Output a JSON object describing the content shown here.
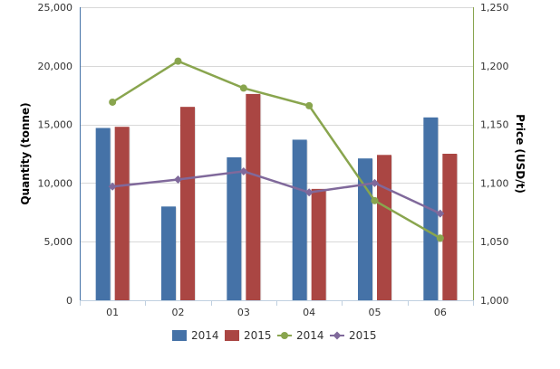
{
  "chart_data": {
    "type": "bar",
    "categories": [
      "01",
      "02",
      "03",
      "04",
      "05",
      "06"
    ],
    "y_left": {
      "label": "Quantity (tonne)",
      "min": 0,
      "max": 25000,
      "ticks": [
        "0",
        "5,000",
        "10,000",
        "15,000",
        "20,000",
        "25,000"
      ],
      "tick_values": [
        0,
        5000,
        10000,
        15000,
        20000,
        25000
      ]
    },
    "y_right": {
      "label": "Price (USD/t)",
      "min": 1000,
      "max": 1250,
      "ticks": [
        "1,000",
        "1,050",
        "1,100",
        "1,150",
        "1,200",
        "1,250"
      ],
      "tick_values": [
        1000,
        1050,
        1100,
        1150,
        1200,
        1250
      ]
    },
    "grid": true,
    "legend_position": "bottom",
    "series": [
      {
        "name": "2014",
        "type": "bar",
        "axis": "left",
        "color": "#4572A7",
        "values": [
          14700,
          8000,
          12200,
          13700,
          12100,
          15600
        ]
      },
      {
        "name": "2015",
        "type": "bar",
        "axis": "left",
        "color": "#AA4643",
        "values": [
          14800,
          16500,
          17600,
          9500,
          12400,
          12500
        ]
      },
      {
        "name": "2014",
        "type": "line",
        "axis": "right",
        "color": "#89A54E",
        "values": [
          1169,
          1204,
          1181,
          1166,
          1085,
          1053
        ]
      },
      {
        "name": "2015",
        "type": "line",
        "axis": "right",
        "color": "#80699B",
        "values": [
          1097,
          1103,
          1110,
          1092,
          1100,
          1074
        ]
      }
    ]
  }
}
